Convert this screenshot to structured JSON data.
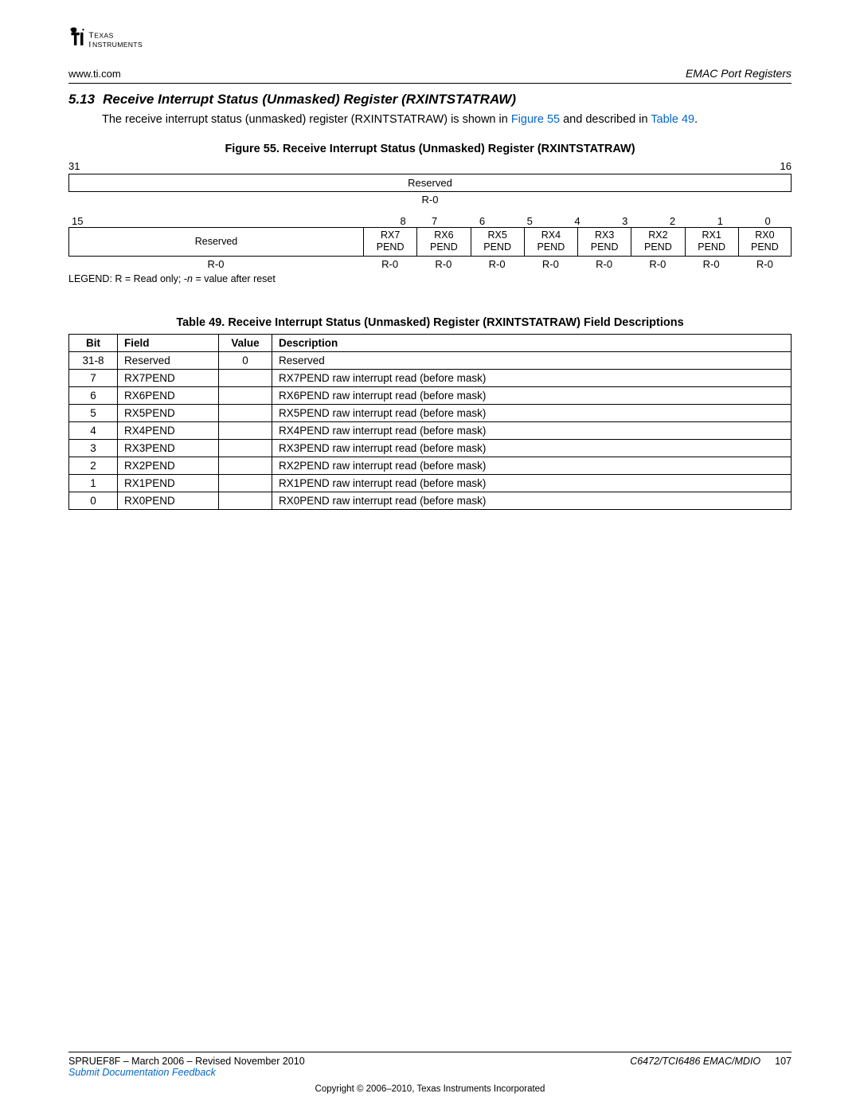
{
  "header": {
    "brand_top": "TEXAS",
    "brand_bottom": "INSTRUMENTS",
    "url": "www.ti.com",
    "right": "EMAC Port Registers"
  },
  "section": {
    "num": "5.13",
    "title": "Receive Interrupt Status (Unmasked) Register (RXINTSTATRAW)"
  },
  "intro": {
    "pre": "The receive interrupt status (unmasked) register (RXINTSTATRAW) is shown in ",
    "fig_link": "Figure 55",
    "mid": " and described in ",
    "tbl_link": "Table 49",
    "post": "."
  },
  "figure": {
    "caption": "Figure 55. Receive Interrupt Status (Unmasked) Register (RXINTSTATRAW)",
    "bit_hi_left": "31",
    "bit_hi_right": "16",
    "row1_name": "Reserved",
    "row1_reset": "R-0",
    "bits2": [
      "15",
      "8",
      "7",
      "6",
      "5",
      "4",
      "3",
      "2",
      "1",
      "0"
    ],
    "row2_reserved": "Reserved",
    "row2_fields": [
      "RX7\nPEND",
      "RX6\nPEND",
      "RX5\nPEND",
      "RX4\nPEND",
      "RX3\nPEND",
      "RX2\nPEND",
      "RX1\nPEND",
      "RX0\nPEND"
    ],
    "row2_resets": [
      "R-0",
      "R-0",
      "R-0",
      "R-0",
      "R-0",
      "R-0",
      "R-0",
      "R-0",
      "R-0"
    ],
    "legend_pre": "LEGEND: R = Read only; -",
    "legend_n": "n",
    "legend_post": " = value after reset"
  },
  "table": {
    "caption": "Table 49. Receive Interrupt Status (Unmasked) Register (RXINTSTATRAW) Field Descriptions",
    "headers": {
      "bit": "Bit",
      "field": "Field",
      "value": "Value",
      "desc": "Description"
    },
    "rows": [
      {
        "bit": "31-8",
        "field": "Reserved",
        "value": "0",
        "desc": "Reserved"
      },
      {
        "bit": "7",
        "field": "RX7PEND",
        "value": "",
        "desc": "RX7PEND raw interrupt read (before mask)"
      },
      {
        "bit": "6",
        "field": "RX6PEND",
        "value": "",
        "desc": "RX6PEND raw interrupt read (before mask)"
      },
      {
        "bit": "5",
        "field": "RX5PEND",
        "value": "",
        "desc": "RX5PEND raw interrupt read (before mask)"
      },
      {
        "bit": "4",
        "field": "RX4PEND",
        "value": "",
        "desc": "RX4PEND raw interrupt read (before mask)"
      },
      {
        "bit": "3",
        "field": "RX3PEND",
        "value": "",
        "desc": "RX3PEND raw interrupt read (before mask)"
      },
      {
        "bit": "2",
        "field": "RX2PEND",
        "value": "",
        "desc": "RX2PEND raw interrupt read (before mask)"
      },
      {
        "bit": "1",
        "field": "RX1PEND",
        "value": "",
        "desc": "RX1PEND raw interrupt read (before mask)"
      },
      {
        "bit": "0",
        "field": "RX0PEND",
        "value": "",
        "desc": "RX0PEND raw interrupt read (before mask)"
      }
    ]
  },
  "footer": {
    "doc_rev": "SPRUEF8F – March 2006 – Revised November 2010",
    "doc_title": "C6472/TCI6486 EMAC/MDIO",
    "page": "107",
    "feedback": "Submit Documentation Feedback",
    "copyright": "Copyright © 2006–2010, Texas Instruments Incorporated"
  }
}
